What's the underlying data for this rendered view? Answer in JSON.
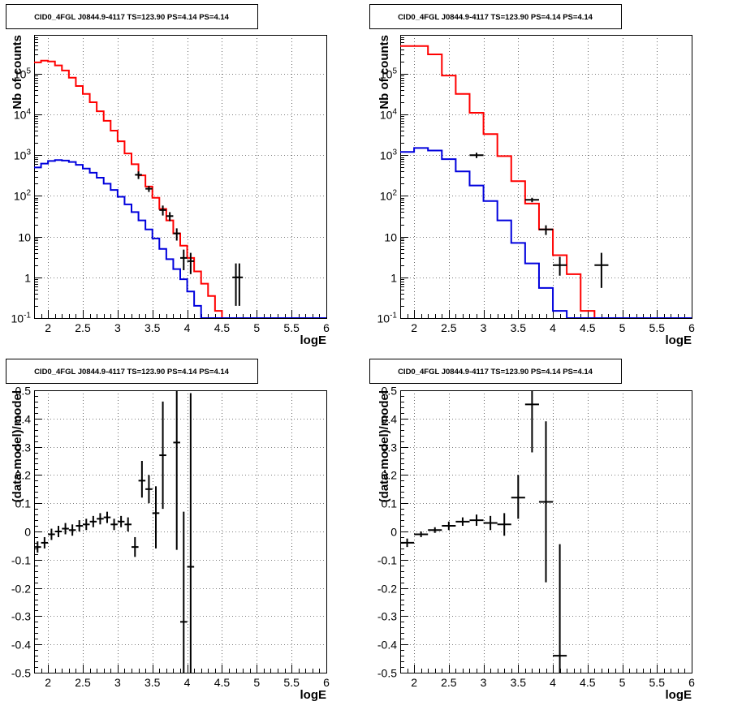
{
  "chart_data": [
    {
      "type": "line",
      "title": "CID0_4FGL J0844.9-4117 TS=123.90 PS=4.14 PS=4.14",
      "xlabel": "logE",
      "ylabel": "Nb of counts",
      "xlim": [
        1.8,
        6.0
      ],
      "ylim": [
        0.1,
        900000
      ],
      "ylog": true,
      "grid": true,
      "x_ticks": [
        "2",
        "2.5",
        "3",
        "3.5",
        "4",
        "4.5",
        "5",
        "5.5",
        "6"
      ],
      "y_ticks": [
        "10^-1",
        "1",
        "10",
        "10^2",
        "10^3",
        "10^4",
        "10^5"
      ],
      "bin_edges": [
        1.8,
        1.9,
        2.0,
        2.1,
        2.2,
        2.3,
        2.4,
        2.5,
        2.6,
        2.7,
        2.8,
        2.9,
        3.0,
        3.1,
        3.2,
        3.3,
        3.4,
        3.5,
        3.6,
        3.7,
        3.8,
        3.9,
        4.0,
        4.1,
        4.2,
        4.3,
        4.4,
        4.5,
        4.6,
        4.7,
        4.8,
        4.9,
        5.0,
        5.1,
        5.2,
        5.3,
        5.4,
        5.5,
        5.6,
        5.7,
        5.8,
        5.9,
        6.0
      ],
      "series": [
        {
          "color": "#ff0000",
          "style": "step",
          "values": [
            190000,
            210000,
            200000,
            160000,
            120000,
            80000,
            50000,
            32000,
            20000,
            12000,
            7000,
            4000,
            2200,
            1100,
            600,
            320,
            170,
            90,
            48,
            25,
            12,
            6,
            3,
            1.4,
            0.7,
            0.35,
            0.15,
            0.1,
            0.1,
            0.1,
            0.1,
            0.1,
            0.1,
            0.1,
            0.1,
            0.1,
            0.1,
            0.1,
            0.1,
            0.1,
            0.1,
            0.1
          ]
        },
        {
          "color": "#0000dd",
          "style": "step",
          "values": [
            500,
            620,
            720,
            760,
            740,
            680,
            580,
            470,
            370,
            280,
            200,
            140,
            95,
            62,
            40,
            25,
            15,
            9,
            5,
            2.8,
            1.6,
            0.9,
            0.45,
            0.2,
            0.1,
            0.1,
            0.1,
            0.1,
            0.1,
            0.1,
            0.1,
            0.1,
            0.1,
            0.1,
            0.1,
            0.1,
            0.1,
            0.1,
            0.1,
            0.1,
            0.1,
            0.1
          ]
        }
      ],
      "points": {
        "x": [
          3.3,
          3.45,
          3.65,
          3.75,
          3.85,
          3.95,
          4.05,
          4.7,
          4.75
        ],
        "y": [
          330,
          150,
          45,
          32,
          12,
          3,
          2.5,
          1,
          1
        ],
        "ylo": [
          260,
          125,
          33,
          24,
          8,
          1.5,
          1.2,
          0.2,
          0.2
        ],
        "yhi": [
          400,
          175,
          58,
          40,
          16,
          4.8,
          4.0,
          2.2,
          2.2
        ],
        "xerr": 0.05
      }
    },
    {
      "type": "line",
      "title": "CID0_4FGL J0844.9-4117 TS=123.90 PS=4.14 PS=4.14",
      "xlabel": "logE",
      "ylabel": "Nb of counts",
      "xlim": [
        1.8,
        6.0
      ],
      "ylim": [
        0.1,
        900000
      ],
      "ylog": true,
      "grid": true,
      "x_ticks": [
        "2",
        "2.5",
        "3",
        "3.5",
        "4",
        "4.5",
        "5",
        "5.5",
        "6"
      ],
      "y_ticks": [
        "10^-1",
        "1",
        "10",
        "10^2",
        "10^3",
        "10^4",
        "10^5"
      ],
      "bin_edges": [
        1.8,
        2.0,
        2.2,
        2.4,
        2.6,
        2.8,
        3.0,
        3.2,
        3.4,
        3.6,
        3.8,
        4.0,
        4.2,
        4.4,
        4.6,
        4.8,
        5.0,
        5.2,
        5.4,
        5.6,
        5.8,
        6.0
      ],
      "series": [
        {
          "color": "#ff0000",
          "style": "step",
          "values": [
            480000,
            480000,
            300000,
            90000,
            32000,
            11000,
            3300,
            950,
            230,
            65,
            15,
            3.5,
            1.2,
            0.15,
            0.1,
            0.1,
            0.1,
            0.1,
            0.1,
            0.1,
            0.1
          ]
        },
        {
          "color": "#0000dd",
          "style": "step",
          "values": [
            1200,
            1500,
            1300,
            800,
            400,
            180,
            75,
            25,
            7,
            2.2,
            0.55,
            0.15,
            0.1,
            0.1,
            0.1,
            0.1,
            0.1,
            0.1,
            0.1,
            0.1,
            0.1
          ]
        }
      ],
      "points": {
        "x": [
          2.9,
          3.7,
          3.9,
          4.1,
          4.7
        ],
        "y": [
          1000,
          80,
          15,
          2,
          2
        ],
        "ylo": [
          850,
          70,
          11,
          1.1,
          0.55
        ],
        "yhi": [
          1150,
          90,
          19,
          3.2,
          4.0
        ],
        "xerr": 0.1
      }
    },
    {
      "type": "scatter",
      "title": "CID0_4FGL J0844.9-4117 TS=123.90 PS=4.14 PS=4.14",
      "xlabel": "logE",
      "ylabel": "(data-model)/model",
      "xlim": [
        1.8,
        6.0
      ],
      "ylim": [
        -0.5,
        0.5
      ],
      "ylog": false,
      "grid": true,
      "x_ticks": [
        "2",
        "2.5",
        "3",
        "3.5",
        "4",
        "4.5",
        "5",
        "5.5",
        "6"
      ],
      "y_ticks": [
        "-0.5",
        "-0.4",
        "-0.3",
        "-0.2",
        "-0.1",
        "0",
        "0.1",
        "0.2",
        "0.3",
        "0.4",
        "0.5"
      ],
      "points": {
        "x": [
          1.85,
          1.95,
          2.05,
          2.15,
          2.25,
          2.35,
          2.45,
          2.55,
          2.65,
          2.75,
          2.85,
          2.95,
          3.05,
          3.15,
          3.25,
          3.35,
          3.45,
          3.55,
          3.65,
          3.85,
          3.95,
          4.05
        ],
        "y": [
          -0.055,
          -0.04,
          -0.01,
          0.0,
          0.01,
          0.005,
          0.02,
          0.025,
          0.035,
          0.045,
          0.05,
          0.025,
          0.035,
          0.025,
          -0.055,
          0.18,
          0.15,
          0.065,
          0.27,
          0.315,
          -0.32,
          -0.125
        ],
        "ylo": [
          -0.075,
          -0.06,
          -0.03,
          -0.02,
          -0.01,
          -0.015,
          0.0,
          0.005,
          0.015,
          0.025,
          0.03,
          0.005,
          0.015,
          0.0,
          -0.09,
          0.12,
          0.1,
          -0.06,
          0.08,
          -0.065,
          -0.5,
          -0.5
        ],
        "yhi": [
          -0.035,
          -0.02,
          0.01,
          0.02,
          0.03,
          0.025,
          0.04,
          0.045,
          0.055,
          0.065,
          0.07,
          0.045,
          0.055,
          0.05,
          -0.02,
          0.25,
          0.2,
          0.16,
          0.46,
          0.5,
          0.07,
          0.49
        ],
        "xerr": 0.05
      }
    },
    {
      "type": "scatter",
      "title": "CID0_4FGL J0844.9-4117 TS=123.90 PS=4.14 PS=4.14",
      "xlabel": "logE",
      "ylabel": "(data-model)/model",
      "xlim": [
        1.8,
        6.0
      ],
      "ylim": [
        -0.5,
        0.5
      ],
      "ylog": false,
      "grid": true,
      "x_ticks": [
        "2",
        "2.5",
        "3",
        "3.5",
        "4",
        "4.5",
        "5",
        "5.5",
        "6"
      ],
      "y_ticks": [
        "-0.5",
        "-0.4",
        "-0.3",
        "-0.2",
        "-0.1",
        "0",
        "0.1",
        "0.2",
        "0.3",
        "0.4",
        "0.5"
      ],
      "points": {
        "x": [
          1.9,
          2.1,
          2.3,
          2.5,
          2.7,
          2.9,
          3.1,
          3.3,
          3.5,
          3.7,
          3.9,
          4.1
        ],
        "y": [
          -0.04,
          -0.01,
          0.005,
          0.02,
          0.035,
          0.04,
          0.03,
          0.025,
          0.12,
          0.45,
          0.105,
          -0.44
        ],
        "ylo": [
          -0.055,
          -0.02,
          -0.005,
          0.005,
          0.02,
          0.02,
          0.005,
          -0.015,
          0.045,
          0.28,
          -0.18,
          -0.5
        ],
        "yhi": [
          -0.025,
          0.0,
          0.015,
          0.035,
          0.05,
          0.06,
          0.055,
          0.065,
          0.2,
          0.5,
          0.39,
          -0.045
        ],
        "xerr": 0.1
      }
    }
  ]
}
